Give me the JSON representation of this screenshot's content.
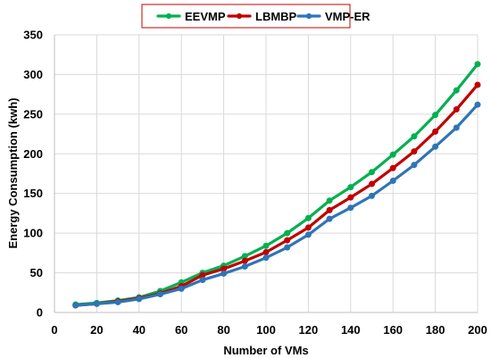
{
  "chart_data": {
    "type": "line",
    "title": "",
    "xlabel": "Number of VMs",
    "ylabel": "Energy Consumption (kwh)",
    "x": [
      10,
      20,
      30,
      40,
      50,
      60,
      70,
      80,
      90,
      100,
      110,
      120,
      130,
      140,
      150,
      160,
      170,
      180,
      190,
      200
    ],
    "xlim": [
      0,
      200
    ],
    "ylim": [
      0,
      350
    ],
    "xticks": [
      0,
      20,
      40,
      60,
      80,
      100,
      120,
      140,
      160,
      180,
      200
    ],
    "yticks": [
      0,
      50,
      100,
      150,
      200,
      250,
      300,
      350
    ],
    "xtick_labels": [
      "0",
      "20",
      "40",
      "60",
      "80",
      "100",
      "120",
      "140",
      "160",
      "180",
      "200"
    ],
    "ytick_labels": [
      "0",
      "50",
      "100",
      "150",
      "200",
      "250",
      "300",
      "350"
    ],
    "grid": true,
    "legend_position": "top-center",
    "series": [
      {
        "name": "EEVMP",
        "color": "#00b050",
        "values": [
          10,
          12,
          15,
          19,
          27,
          38,
          50,
          59,
          71,
          84,
          100,
          119,
          141,
          158,
          177,
          199,
          222,
          249,
          280,
          313
        ]
      },
      {
        "name": "LBMBP",
        "color": "#c00000",
        "values": [
          9,
          11,
          14,
          18,
          24,
          33,
          47,
          55,
          65,
          76,
          91,
          107,
          129,
          145,
          162,
          182,
          203,
          228,
          256,
          287
        ]
      },
      {
        "name": "VMP-ER",
        "color": "#2e75b6",
        "values": [
          9,
          11,
          13,
          17,
          23,
          30,
          41,
          49,
          58,
          69,
          82,
          98,
          118,
          132,
          147,
          166,
          186,
          209,
          233,
          262
        ]
      }
    ]
  }
}
